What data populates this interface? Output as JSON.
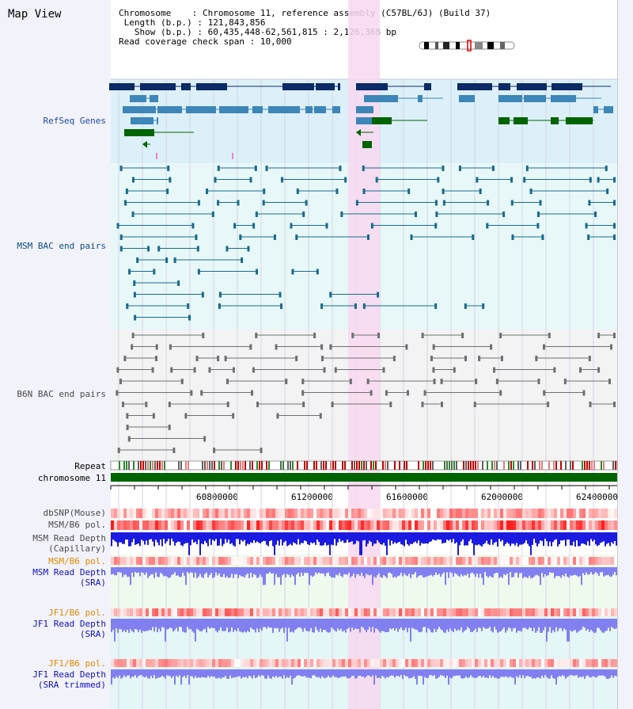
{
  "title": "Map View",
  "header": {
    "chromosome_label": "Chromosome",
    "chromosome_value": "Chromosome 11, reference assembly (C57BL/6J) (Build 37)",
    "length_label": "Length (b.p.)",
    "length_value": "121,843,856",
    "show_label": "Show (b.p.)",
    "show_value": "60,435,448-62,561,815 : 2,126,368 bp",
    "coverage_label": "Read coverage check span",
    "coverage_value": "10,000"
  },
  "tracks": {
    "refseq": "RefSeq Genes",
    "msm_bac": "MSM BAC end pairs",
    "b6n_bac": "B6N BAC end pairs",
    "repeat": "Repeat",
    "chromosome": "chromosome 11",
    "dbsnp": "dbSNP(Mouse)",
    "msm_b6_pol_1": "MSM/B6 pol.",
    "msm_depth_cap_1": "MSM Read Depth",
    "msm_depth_cap_2": "(Capillary)",
    "msm_b6_pol_2": "MSM/B6 pol.",
    "msm_depth_sra_1": "MSM Read Depth",
    "msm_depth_sra_2": "(SRA)",
    "jf1_b6_pol_1": "JF1/B6 pol.",
    "jf1_depth_sra_1": "JF1 Read Depth",
    "jf1_depth_sra_2": "(SRA)",
    "jf1_b6_pol_2": "JF1/B6 pol.",
    "jf1_depth_trim_1": "JF1 Read Depth",
    "jf1_depth_trim_2": "(SRA trimmed)"
  },
  "axis": {
    "ticks": [
      "60800000",
      "61200000",
      "61600000",
      "62000000",
      "62400000"
    ]
  },
  "colors": {
    "highlight": "#f8d8f0",
    "refseq_bg": "#ddf0fa",
    "refseq_label": "#1a4b9c",
    "msm_label": "#0a4f7a",
    "b6n_label": "#4a4a4a",
    "pol_label": "#e08a00",
    "depth_label": "#1010c0",
    "gene_dark": "#0b2a66",
    "gene_mid": "#3d86b8",
    "gene_green": "#006400",
    "chromosome_bar": "#006400",
    "depth_dark": "#1a1ae0",
    "depth_light": "#8080f0"
  },
  "icons": {
    "chromosome_ideogram": "chromosome-ideogram-icon"
  }
}
